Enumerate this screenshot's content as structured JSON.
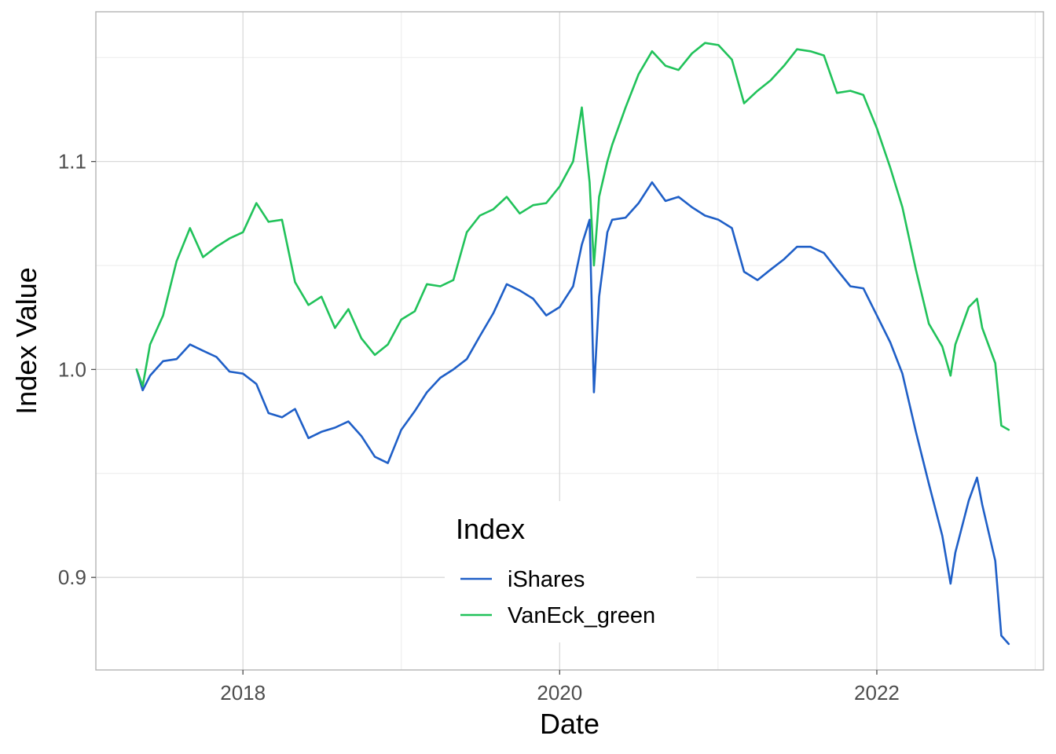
{
  "chart_data": {
    "type": "line",
    "title": "",
    "xlabel": "Date",
    "ylabel": "Index Value",
    "xlim": [
      "2017-01-27",
      "2023-01-20"
    ],
    "ylim": [
      0.8555,
      1.172
    ],
    "x_ticks": [
      "2018-01-01",
      "2020-01-01",
      "2022-01-01"
    ],
    "x_tick_labels": [
      "2018",
      "2020",
      "2022"
    ],
    "y_ticks": [
      0.9,
      1.0,
      1.1
    ],
    "y_tick_labels": [
      "0.9",
      "1.0",
      "1.1"
    ],
    "y_minor_ticks": [
      0.95,
      1.05,
      1.15
    ],
    "grid": true,
    "legend": {
      "title": "Index",
      "position": "inside-bottom-center"
    },
    "series": [
      {
        "name": "iShares",
        "color": "#1f5fc7",
        "points": [
          [
            "2017-05-01",
            1.0
          ],
          [
            "2017-05-15",
            0.99
          ],
          [
            "2017-06-01",
            0.997
          ],
          [
            "2017-07-01",
            1.004
          ],
          [
            "2017-08-01",
            1.005
          ],
          [
            "2017-09-01",
            1.012
          ],
          [
            "2017-10-01",
            1.009
          ],
          [
            "2017-11-01",
            1.006
          ],
          [
            "2017-12-01",
            0.999
          ],
          [
            "2018-01-01",
            0.998
          ],
          [
            "2018-02-01",
            0.993
          ],
          [
            "2018-03-01",
            0.979
          ],
          [
            "2018-04-01",
            0.977
          ],
          [
            "2018-05-01",
            0.981
          ],
          [
            "2018-06-01",
            0.967
          ],
          [
            "2018-07-01",
            0.97
          ],
          [
            "2018-08-01",
            0.972
          ],
          [
            "2018-09-01",
            0.975
          ],
          [
            "2018-10-01",
            0.968
          ],
          [
            "2018-11-01",
            0.958
          ],
          [
            "2018-12-01",
            0.955
          ],
          [
            "2019-01-01",
            0.971
          ],
          [
            "2019-02-01",
            0.98
          ],
          [
            "2019-03-01",
            0.989
          ],
          [
            "2019-04-01",
            0.996
          ],
          [
            "2019-05-01",
            1.0
          ],
          [
            "2019-06-01",
            1.005
          ],
          [
            "2019-07-01",
            1.016
          ],
          [
            "2019-08-01",
            1.027
          ],
          [
            "2019-09-01",
            1.041
          ],
          [
            "2019-10-01",
            1.038
          ],
          [
            "2019-11-01",
            1.034
          ],
          [
            "2019-12-01",
            1.026
          ],
          [
            "2020-01-01",
            1.03
          ],
          [
            "2020-02-01",
            1.04
          ],
          [
            "2020-02-21",
            1.06
          ],
          [
            "2020-03-10",
            1.072
          ],
          [
            "2020-03-20",
            0.989
          ],
          [
            "2020-04-01",
            1.035
          ],
          [
            "2020-04-20",
            1.066
          ],
          [
            "2020-05-01",
            1.072
          ],
          [
            "2020-06-01",
            1.073
          ],
          [
            "2020-07-01",
            1.08
          ],
          [
            "2020-08-01",
            1.09
          ],
          [
            "2020-09-01",
            1.081
          ],
          [
            "2020-10-01",
            1.083
          ],
          [
            "2020-11-01",
            1.078
          ],
          [
            "2020-12-01",
            1.074
          ],
          [
            "2021-01-01",
            1.072
          ],
          [
            "2021-02-01",
            1.068
          ],
          [
            "2021-03-01",
            1.047
          ],
          [
            "2021-04-01",
            1.043
          ],
          [
            "2021-05-01",
            1.048
          ],
          [
            "2021-06-01",
            1.053
          ],
          [
            "2021-07-01",
            1.059
          ],
          [
            "2021-08-01",
            1.059
          ],
          [
            "2021-09-01",
            1.056
          ],
          [
            "2021-10-01",
            1.048
          ],
          [
            "2021-11-01",
            1.04
          ],
          [
            "2021-12-01",
            1.039
          ],
          [
            "2022-01-01",
            1.026
          ],
          [
            "2022-02-01",
            1.013
          ],
          [
            "2022-03-01",
            0.998
          ],
          [
            "2022-04-01",
            0.97
          ],
          [
            "2022-05-01",
            0.945
          ],
          [
            "2022-06-01",
            0.92
          ],
          [
            "2022-06-20",
            0.897
          ],
          [
            "2022-07-01",
            0.912
          ],
          [
            "2022-08-01",
            0.937
          ],
          [
            "2022-08-20",
            0.948
          ],
          [
            "2022-09-01",
            0.935
          ],
          [
            "2022-10-01",
            0.908
          ],
          [
            "2022-10-15",
            0.872
          ],
          [
            "2022-11-01",
            0.868
          ]
        ]
      },
      {
        "name": "VanEck_green",
        "color": "#21c25a",
        "points": [
          [
            "2017-05-01",
            1.0
          ],
          [
            "2017-05-15",
            0.992
          ],
          [
            "2017-06-01",
            1.012
          ],
          [
            "2017-07-01",
            1.026
          ],
          [
            "2017-08-01",
            1.052
          ],
          [
            "2017-09-01",
            1.068
          ],
          [
            "2017-10-01",
            1.054
          ],
          [
            "2017-11-01",
            1.059
          ],
          [
            "2017-12-01",
            1.063
          ],
          [
            "2018-01-01",
            1.066
          ],
          [
            "2018-02-01",
            1.08
          ],
          [
            "2018-03-01",
            1.071
          ],
          [
            "2018-04-01",
            1.072
          ],
          [
            "2018-05-01",
            1.042
          ],
          [
            "2018-06-01",
            1.031
          ],
          [
            "2018-07-01",
            1.035
          ],
          [
            "2018-08-01",
            1.02
          ],
          [
            "2018-09-01",
            1.029
          ],
          [
            "2018-10-01",
            1.015
          ],
          [
            "2018-11-01",
            1.007
          ],
          [
            "2018-12-01",
            1.012
          ],
          [
            "2019-01-01",
            1.024
          ],
          [
            "2019-02-01",
            1.028
          ],
          [
            "2019-03-01",
            1.041
          ],
          [
            "2019-04-01",
            1.04
          ],
          [
            "2019-05-01",
            1.043
          ],
          [
            "2019-06-01",
            1.066
          ],
          [
            "2019-07-01",
            1.074
          ],
          [
            "2019-08-01",
            1.077
          ],
          [
            "2019-09-01",
            1.083
          ],
          [
            "2019-10-01",
            1.075
          ],
          [
            "2019-11-01",
            1.079
          ],
          [
            "2019-12-01",
            1.08
          ],
          [
            "2020-01-01",
            1.088
          ],
          [
            "2020-02-01",
            1.1
          ],
          [
            "2020-02-21",
            1.126
          ],
          [
            "2020-03-10",
            1.09
          ],
          [
            "2020-03-20",
            1.05
          ],
          [
            "2020-04-01",
            1.083
          ],
          [
            "2020-04-20",
            1.1
          ],
          [
            "2020-05-01",
            1.108
          ],
          [
            "2020-06-01",
            1.126
          ],
          [
            "2020-07-01",
            1.142
          ],
          [
            "2020-08-01",
            1.153
          ],
          [
            "2020-09-01",
            1.146
          ],
          [
            "2020-10-01",
            1.144
          ],
          [
            "2020-11-01",
            1.152
          ],
          [
            "2020-12-01",
            1.157
          ],
          [
            "2021-01-01",
            1.156
          ],
          [
            "2021-02-01",
            1.149
          ],
          [
            "2021-03-01",
            1.128
          ],
          [
            "2021-04-01",
            1.134
          ],
          [
            "2021-05-01",
            1.139
          ],
          [
            "2021-06-01",
            1.146
          ],
          [
            "2021-07-01",
            1.154
          ],
          [
            "2021-08-01",
            1.153
          ],
          [
            "2021-09-01",
            1.151
          ],
          [
            "2021-10-01",
            1.133
          ],
          [
            "2021-11-01",
            1.134
          ],
          [
            "2021-12-01",
            1.132
          ],
          [
            "2022-01-01",
            1.116
          ],
          [
            "2022-02-01",
            1.097
          ],
          [
            "2022-03-01",
            1.078
          ],
          [
            "2022-04-01",
            1.048
          ],
          [
            "2022-05-01",
            1.022
          ],
          [
            "2022-06-01",
            1.011
          ],
          [
            "2022-06-20",
            0.997
          ],
          [
            "2022-07-01",
            1.012
          ],
          [
            "2022-08-01",
            1.03
          ],
          [
            "2022-08-20",
            1.034
          ],
          [
            "2022-09-01",
            1.02
          ],
          [
            "2022-10-01",
            1.003
          ],
          [
            "2022-10-15",
            0.973
          ],
          [
            "2022-11-01",
            0.971
          ]
        ]
      }
    ]
  }
}
